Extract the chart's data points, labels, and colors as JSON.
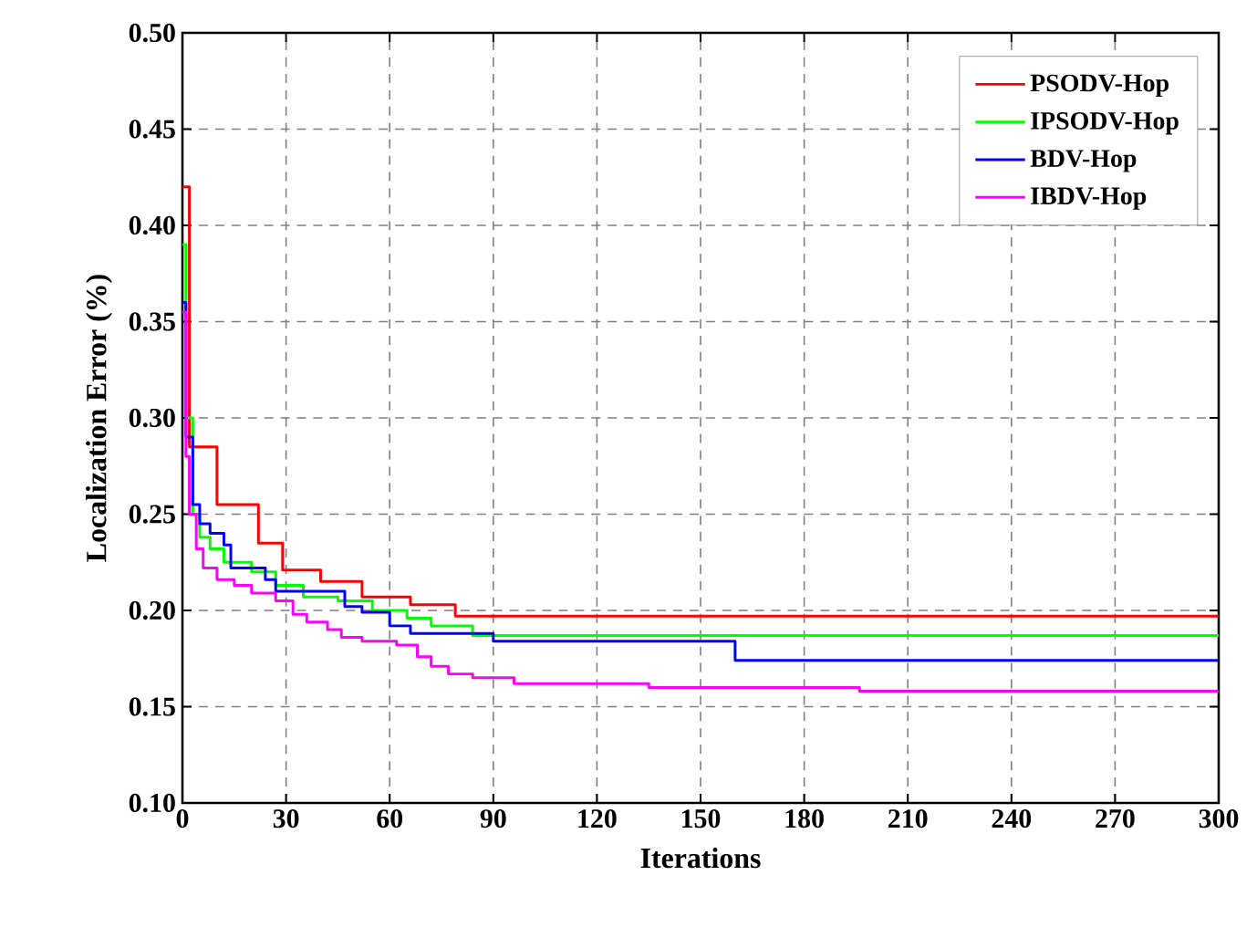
{
  "chart_data": {
    "type": "step",
    "xlabel": "Iterations",
    "ylabel": "Localization Error (%)",
    "xlim": [
      0,
      300
    ],
    "ylim": [
      0.1,
      0.5
    ],
    "xticks": [
      0,
      30,
      60,
      90,
      120,
      150,
      180,
      210,
      240,
      270,
      300
    ],
    "yticks": [
      {
        "value": 0.1,
        "label": "0.10"
      },
      {
        "value": 0.15,
        "label": "0.15"
      },
      {
        "value": 0.2,
        "label": "0.20"
      },
      {
        "value": 0.25,
        "label": "0.25"
      },
      {
        "value": 0.3,
        "label": "0.30"
      },
      {
        "value": 0.35,
        "label": "0.35"
      },
      {
        "value": 0.4,
        "label": "0.40"
      },
      {
        "value": 0.45,
        "label": "0.45"
      },
      {
        "value": 0.5,
        "label": "0.50"
      }
    ],
    "grid": true,
    "legend": "top right",
    "series": [
      {
        "name": "PSODV-Hop",
        "color": "#ff0000",
        "x": [
          0,
          2,
          10,
          22,
          29,
          40,
          52,
          66,
          79,
          300
        ],
        "values": [
          0.42,
          0.285,
          0.255,
          0.235,
          0.221,
          0.215,
          0.207,
          0.203,
          0.197,
          0.197
        ]
      },
      {
        "name": "IPSODV-Hop",
        "color": "#00ff00",
        "x": [
          0,
          1,
          3,
          5,
          8,
          12,
          20,
          27,
          35,
          45,
          55,
          65,
          72,
          84,
          300
        ],
        "values": [
          0.39,
          0.3,
          0.25,
          0.238,
          0.232,
          0.225,
          0.22,
          0.213,
          0.207,
          0.205,
          0.2,
          0.196,
          0.192,
          0.187,
          0.187
        ]
      },
      {
        "name": "BDV-Hop",
        "color": "#0000ff",
        "x": [
          0,
          1,
          3,
          5,
          8,
          12,
          14,
          24,
          27,
          47,
          52,
          60,
          66,
          90,
          160,
          300
        ],
        "values": [
          0.36,
          0.29,
          0.255,
          0.245,
          0.24,
          0.234,
          0.222,
          0.216,
          0.21,
          0.202,
          0.199,
          0.192,
          0.188,
          0.184,
          0.174,
          0.174
        ]
      },
      {
        "name": "IBDV-Hop",
        "color": "#ff00ff",
        "x": [
          0,
          1,
          2,
          4,
          6,
          10,
          15,
          20,
          27,
          32,
          36,
          42,
          46,
          52,
          62,
          68,
          72,
          77,
          84,
          96,
          135,
          196,
          300
        ],
        "values": [
          0.355,
          0.28,
          0.25,
          0.232,
          0.222,
          0.216,
          0.213,
          0.209,
          0.205,
          0.198,
          0.194,
          0.19,
          0.186,
          0.184,
          0.182,
          0.176,
          0.171,
          0.167,
          0.165,
          0.162,
          0.16,
          0.158,
          0.158
        ]
      }
    ]
  }
}
